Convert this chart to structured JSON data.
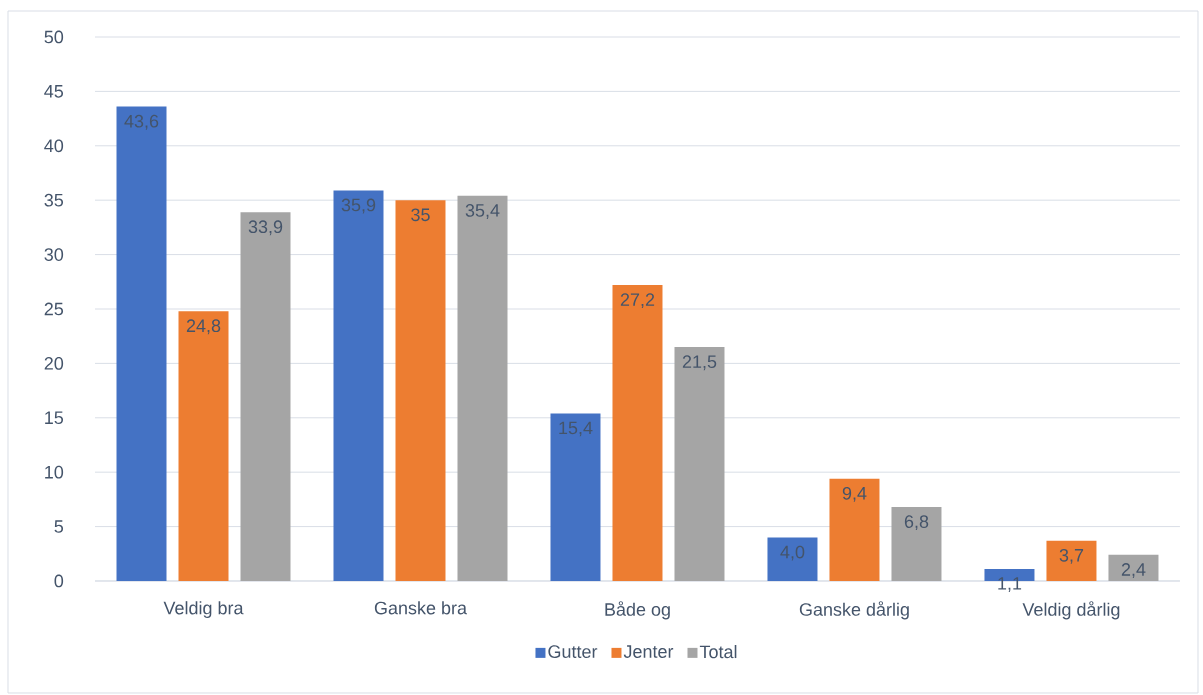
{
  "chart_data": {
    "type": "bar",
    "categories": [
      "Veldig bra",
      "Ganske bra",
      "Både og",
      "Ganske dårlig",
      "Veldig dårlig"
    ],
    "series": [
      {
        "name": "Gutter",
        "color": "#4472c4",
        "values": [
          43.6,
          35.9,
          15.4,
          4.0,
          1.1
        ],
        "value_labels": [
          "43,6",
          "35,9",
          "15,4",
          "4,0",
          "1,1"
        ]
      },
      {
        "name": "Jenter",
        "color": "#ed7d31",
        "values": [
          24.8,
          35,
          27.2,
          9.4,
          3.7
        ],
        "value_labels": [
          "24,8",
          "35",
          "27,2",
          "9,4",
          "3,7"
        ]
      },
      {
        "name": "Total",
        "color": "#a5a5a5",
        "values": [
          33.9,
          35.4,
          21.5,
          6.8,
          2.4
        ],
        "value_labels": [
          "33,9",
          "35,4",
          "21,5",
          "6,8",
          "2,4"
        ]
      }
    ],
    "ylim": [
      0,
      50
    ],
    "yticks": [
      0,
      5,
      10,
      15,
      20,
      25,
      30,
      35,
      40,
      45,
      50
    ],
    "grid": "y",
    "legend": "bottom"
  }
}
